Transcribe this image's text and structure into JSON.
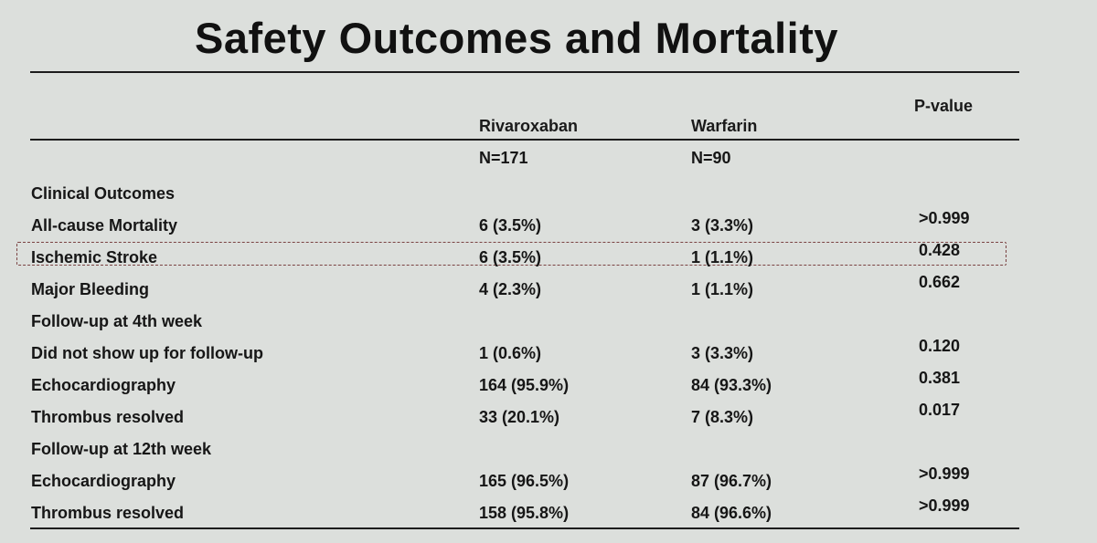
{
  "title": "Safety Outcomes and Mortality",
  "columns": {
    "rivaroxaban": "Rivaroxaban",
    "warfarin": "Warfarin",
    "pvalue": "P-value"
  },
  "n_row": {
    "rivaroxaban": "N=171",
    "warfarin": "N=90"
  },
  "rows": [
    {
      "label": "Clinical Outcomes",
      "riva": "",
      "warf": "",
      "p": ""
    },
    {
      "label": "All-cause Mortality",
      "riva": "6 (3.5%)",
      "warf": "3 (3.3%)",
      "p": ">0.999"
    },
    {
      "label": "Ischemic Stroke",
      "riva": "6 (3.5%)",
      "warf": "1 (1.1%)",
      "p": "0.428"
    },
    {
      "label": "Major Bleeding",
      "riva": "4 (2.3%)",
      "warf": "1 (1.1%)",
      "p": "0.662"
    },
    {
      "label": "Follow-up at 4th week",
      "riva": "",
      "warf": "",
      "p": ""
    },
    {
      "label": "Did not show up for follow-up",
      "riva": "1 (0.6%)",
      "warf": "3 (3.3%)",
      "p": "0.120"
    },
    {
      "label": "Echocardiography",
      "riva": "164 (95.9%)",
      "warf": "84 (93.3%)",
      "p": "0.381"
    },
    {
      "label": "Thrombus resolved",
      "riva": "33 (20.1%)",
      "warf": "7 (8.3%)",
      "p": "0.017"
    },
    {
      "label": "Follow-up at 12th week",
      "riva": "",
      "warf": "",
      "p": ""
    },
    {
      "label": "Echocardiography",
      "riva": "165 (96.5%)",
      "warf": "87 (96.7%)",
      "p": ">0.999"
    },
    {
      "label": "Thrombus resolved",
      "riva": "158 (95.8%)",
      "warf": "84 (96.6%)",
      "p": ">0.999"
    }
  ]
}
